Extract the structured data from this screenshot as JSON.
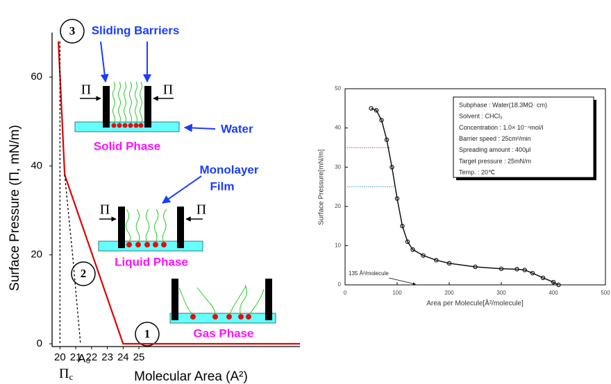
{
  "chart_data": [
    {
      "type": "line",
      "y_label": "Surface Pressure (Π, mN/m)",
      "x_label": "Molecular Area  (A²)",
      "xlim": [
        19.5,
        35.2
      ],
      "xticks": [
        20,
        21,
        22,
        23,
        24,
        25
      ],
      "ylim": [
        0,
        70
      ],
      "yticks": [
        0,
        20,
        40,
        60
      ],
      "series": [
        {
          "color": "#e00000",
          "x": [
            19.9,
            20.3,
            24,
            35.2
          ],
          "values": [
            68,
            38,
            0,
            0
          ]
        },
        {
          "color": "#000000",
          "dash": true,
          "x": [
            20.3,
            20.8,
            21.3
          ],
          "values": [
            38,
            20,
            0
          ]
        },
        {
          "color": "#000000",
          "dash": true,
          "x": [
            20,
            20
          ],
          "values": [
            68,
            0
          ]
        }
      ],
      "point_labels": [
        "3",
        "2",
        "1"
      ],
      "a0_label": "A₀",
      "pi_c": {
        "symbol": "Π",
        "subscript": "c"
      },
      "annotations": {
        "sliding_barriers": "Sliding Barriers",
        "water": "Water",
        "solid_phase": "Solid Phase",
        "monolayer_film": [
          "Monolayer",
          "Film"
        ],
        "liquid_phase": "Liquid Phase",
        "gas_phase": "Gas Phase",
        "pi": "Π"
      }
    },
    {
      "type": "line",
      "y_label": "Surface Pressure[mN/m]",
      "x_label": "Area per Molecule[Å²/molecule]",
      "xlim": [
        0,
        500
      ],
      "xticks": [
        0,
        100,
        200,
        300,
        400,
        500
      ],
      "ylim": [
        0,
        50
      ],
      "yticks": [
        0,
        10,
        20,
        30,
        40,
        50
      ],
      "series": [
        {
          "color": "#111111",
          "x": [
            50,
            60,
            70,
            80,
            90,
            100,
            110,
            120,
            130,
            150,
            175,
            200,
            250,
            300,
            330,
            345,
            360,
            380,
            400,
            410
          ],
          "values": [
            45,
            44.5,
            42,
            37,
            30,
            22,
            15,
            11,
            9,
            7.5,
            6.3,
            5.5,
            4.6,
            4.1,
            4,
            3.8,
            3,
            1.8,
            0.7,
            0
          ]
        }
      ],
      "reference_lines": [
        {
          "x": 87,
          "y": 35,
          "color": "#d04040"
        },
        {
          "x": 97,
          "y": 25,
          "color": "#40a0d0"
        }
      ],
      "annotation": {
        "text": "135 Å²/molecule",
        "x": 135
      },
      "info_box": [
        "Subphase : Water(18.3MΩ· cm)",
        "Solvent : CHCl₃",
        "Concentration : 1.0× 10⁻⁴mol/l",
        "Barrier speed : 25cm²/min",
        "Spreading amount : 400μl",
        "Target pressure : 25mN/m",
        "Temp. : 20℃"
      ]
    }
  ]
}
